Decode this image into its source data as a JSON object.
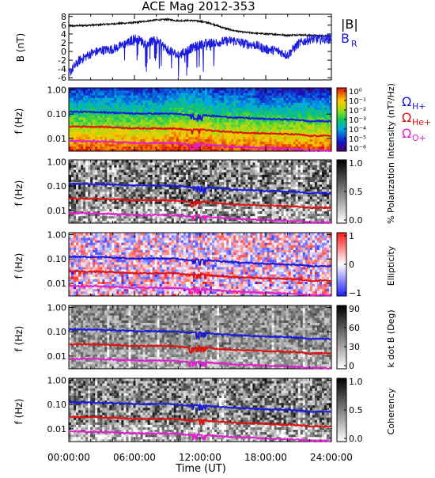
{
  "chart_data": {
    "type": "heatmap",
    "title": "ACE Mag 2012-353",
    "xlabel": "Time (UT)",
    "x_ticks": [
      "00:00:00",
      "06:00:00",
      "12:00:00",
      "18:00:00",
      "24:00:00"
    ],
    "x_range_hours": [
      0,
      24
    ],
    "line_panel": {
      "ylabel": "B (nT)",
      "ylim": [
        -6.5,
        8.5
      ],
      "yticks": [
        "8",
        "6",
        "4",
        "2",
        "0",
        "-2",
        "-4",
        "-6"
      ],
      "ytick_values": [
        8,
        6,
        4,
        2,
        0,
        -2,
        -4,
        -6
      ],
      "series": [
        {
          "name": "|B|",
          "color": "#000000",
          "x_hours": [
            0,
            2,
            4,
            6,
            7,
            8,
            9,
            10,
            11,
            12,
            13,
            14,
            15,
            16,
            17,
            18,
            19,
            20,
            21,
            22,
            23,
            24
          ],
          "values": [
            5.8,
            6.0,
            6.3,
            6.6,
            6.9,
            7.2,
            7.3,
            7.0,
            7.1,
            6.9,
            6.4,
            5.5,
            4.8,
            4.4,
            4.2,
            4.0,
            3.9,
            3.7,
            3.8,
            3.7,
            3.6,
            3.5
          ]
        },
        {
          "name": "B",
          "subscript": "R",
          "color": "#1a1adc",
          "x_hours": [
            0,
            1,
            2,
            3,
            4,
            5,
            6,
            7,
            8,
            9,
            10,
            11,
            12,
            13,
            14,
            15,
            16,
            17,
            18,
            19,
            20,
            21,
            22,
            23,
            24
          ],
          "values": [
            -5.0,
            -2.0,
            -0.5,
            0.3,
            0.5,
            1.5,
            3.0,
            2.0,
            2.5,
            0.5,
            -1.0,
            0.5,
            1.5,
            2.0,
            2.2,
            2.5,
            1.8,
            1.5,
            0.5,
            0.2,
            -0.8,
            1.8,
            2.8,
            2.8,
            3.0
          ]
        }
      ]
    },
    "spectral_panels": [
      {
        "name": "intensity",
        "ylabel": "f (Hz)",
        "colorbar_label": "Intensity (nT²/Hz)",
        "colorbar_ticks": [
          "10⁰",
          "10⁻¹",
          "10⁻²",
          "10⁻³",
          "10⁻⁴",
          "10⁻⁵",
          "10⁻⁶"
        ],
        "colormap": "rainbow"
      },
      {
        "name": "polarization",
        "ylabel": "f (Hz)",
        "colorbar_label": "% Polarization",
        "colorbar_ticks": [
          "1.0",
          "0.5",
          "0.0"
        ],
        "colormap": "gray"
      },
      {
        "name": "ellipticity",
        "ylabel": "f (Hz)",
        "colorbar_label": "Ellipticity",
        "colorbar_ticks": [
          "1",
          "0",
          "−1"
        ],
        "colormap": "red-white-blue"
      },
      {
        "name": "k-dot-b",
        "ylabel": "f (Hz)",
        "colorbar_label": "k dot B (Deg)",
        "colorbar_ticks": [
          "90",
          "60",
          "30",
          "0"
        ],
        "colormap": "gray"
      },
      {
        "name": "coherency",
        "ylabel": "f (Hz)",
        "colorbar_label": "Coherency",
        "colorbar_ticks": [
          "1.0",
          "0.5",
          "0.0"
        ],
        "colormap": "gray"
      }
    ],
    "frequency_axis": {
      "scale": "log",
      "ylim_hz": [
        0.003,
        1.2
      ],
      "yticks": [
        "1.00",
        "0.10",
        "0.01"
      ],
      "ytick_values": [
        1.0,
        0.1,
        0.01
      ]
    },
    "gyrofrequency_lines": [
      {
        "name": "Ω",
        "subscript": "H+",
        "color": "#1a1adc",
        "x_hours": [
          0,
          3,
          6,
          9,
          10,
          11,
          12,
          13,
          15,
          18,
          20,
          21,
          22,
          23,
          24
        ],
        "values_hz": [
          0.125,
          0.12,
          0.105,
          0.105,
          0.1,
          0.09,
          0.095,
          0.085,
          0.073,
          0.063,
          0.06,
          0.058,
          0.05,
          0.052,
          0.05
        ]
      },
      {
        "name": "Ω",
        "subscript": "He+",
        "color": "#e01010",
        "x_hours": [
          0,
          3,
          6,
          9,
          10,
          11,
          12,
          13,
          15,
          18,
          20,
          21,
          22,
          23,
          24
        ],
        "values_hz": [
          0.031,
          0.03,
          0.026,
          0.026,
          0.025,
          0.022,
          0.024,
          0.021,
          0.018,
          0.016,
          0.015,
          0.0145,
          0.0125,
          0.013,
          0.0125
        ]
      },
      {
        "name": "Ω",
        "subscript": "O+",
        "color": "#e020d0",
        "x_hours": [
          0,
          3,
          6,
          9,
          10,
          11,
          12,
          13,
          15,
          18,
          20,
          21,
          22,
          23,
          24
        ],
        "values_hz": [
          0.0078,
          0.0075,
          0.0065,
          0.0065,
          0.0062,
          0.0056,
          0.006,
          0.0053,
          0.0046,
          0.004,
          0.0038,
          0.0036,
          0.0032,
          0.0033,
          0.0031
        ]
      }
    ],
    "legend_placement": "right"
  }
}
